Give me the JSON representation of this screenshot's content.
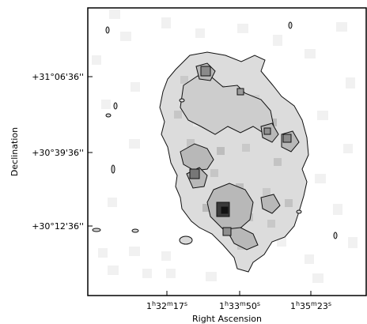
{
  "chart_data": {
    "type": "heatmap",
    "title": "",
    "xlabel": "Right Ascension",
    "ylabel": "Declination",
    "x_ticks": [
      {
        "h": "1",
        "m": "32",
        "s": "17",
        "value_deg": 23.0708
      },
      {
        "h": "1",
        "m": "33",
        "s": "50",
        "value_deg": 23.4583
      },
      {
        "h": "1",
        "m": "35",
        "s": "23",
        "value_deg": 23.8458
      }
    ],
    "y_ticks": [
      {
        "label": "+31°06'36''",
        "value_deg": 31.11
      },
      {
        "label": "+30°39'36''",
        "value_deg": 30.66
      },
      {
        "label": "+30°12'36''",
        "value_deg": 30.21
      }
    ],
    "x_range_deg": [
      24.03,
      22.72
    ],
    "y_range_deg": [
      29.99,
      31.52
    ],
    "x_direction": "RA increases to the right",
    "colormap": "grayscale",
    "contours": true,
    "grid": false,
    "legend": "none",
    "colors": {
      "background": "#ffffff",
      "frame": "#000000",
      "contour": "#111111",
      "pixel_light": "#ececec",
      "pixel_mid": "#c8c8c8",
      "pixel_dark": "#4a4a4a"
    }
  }
}
